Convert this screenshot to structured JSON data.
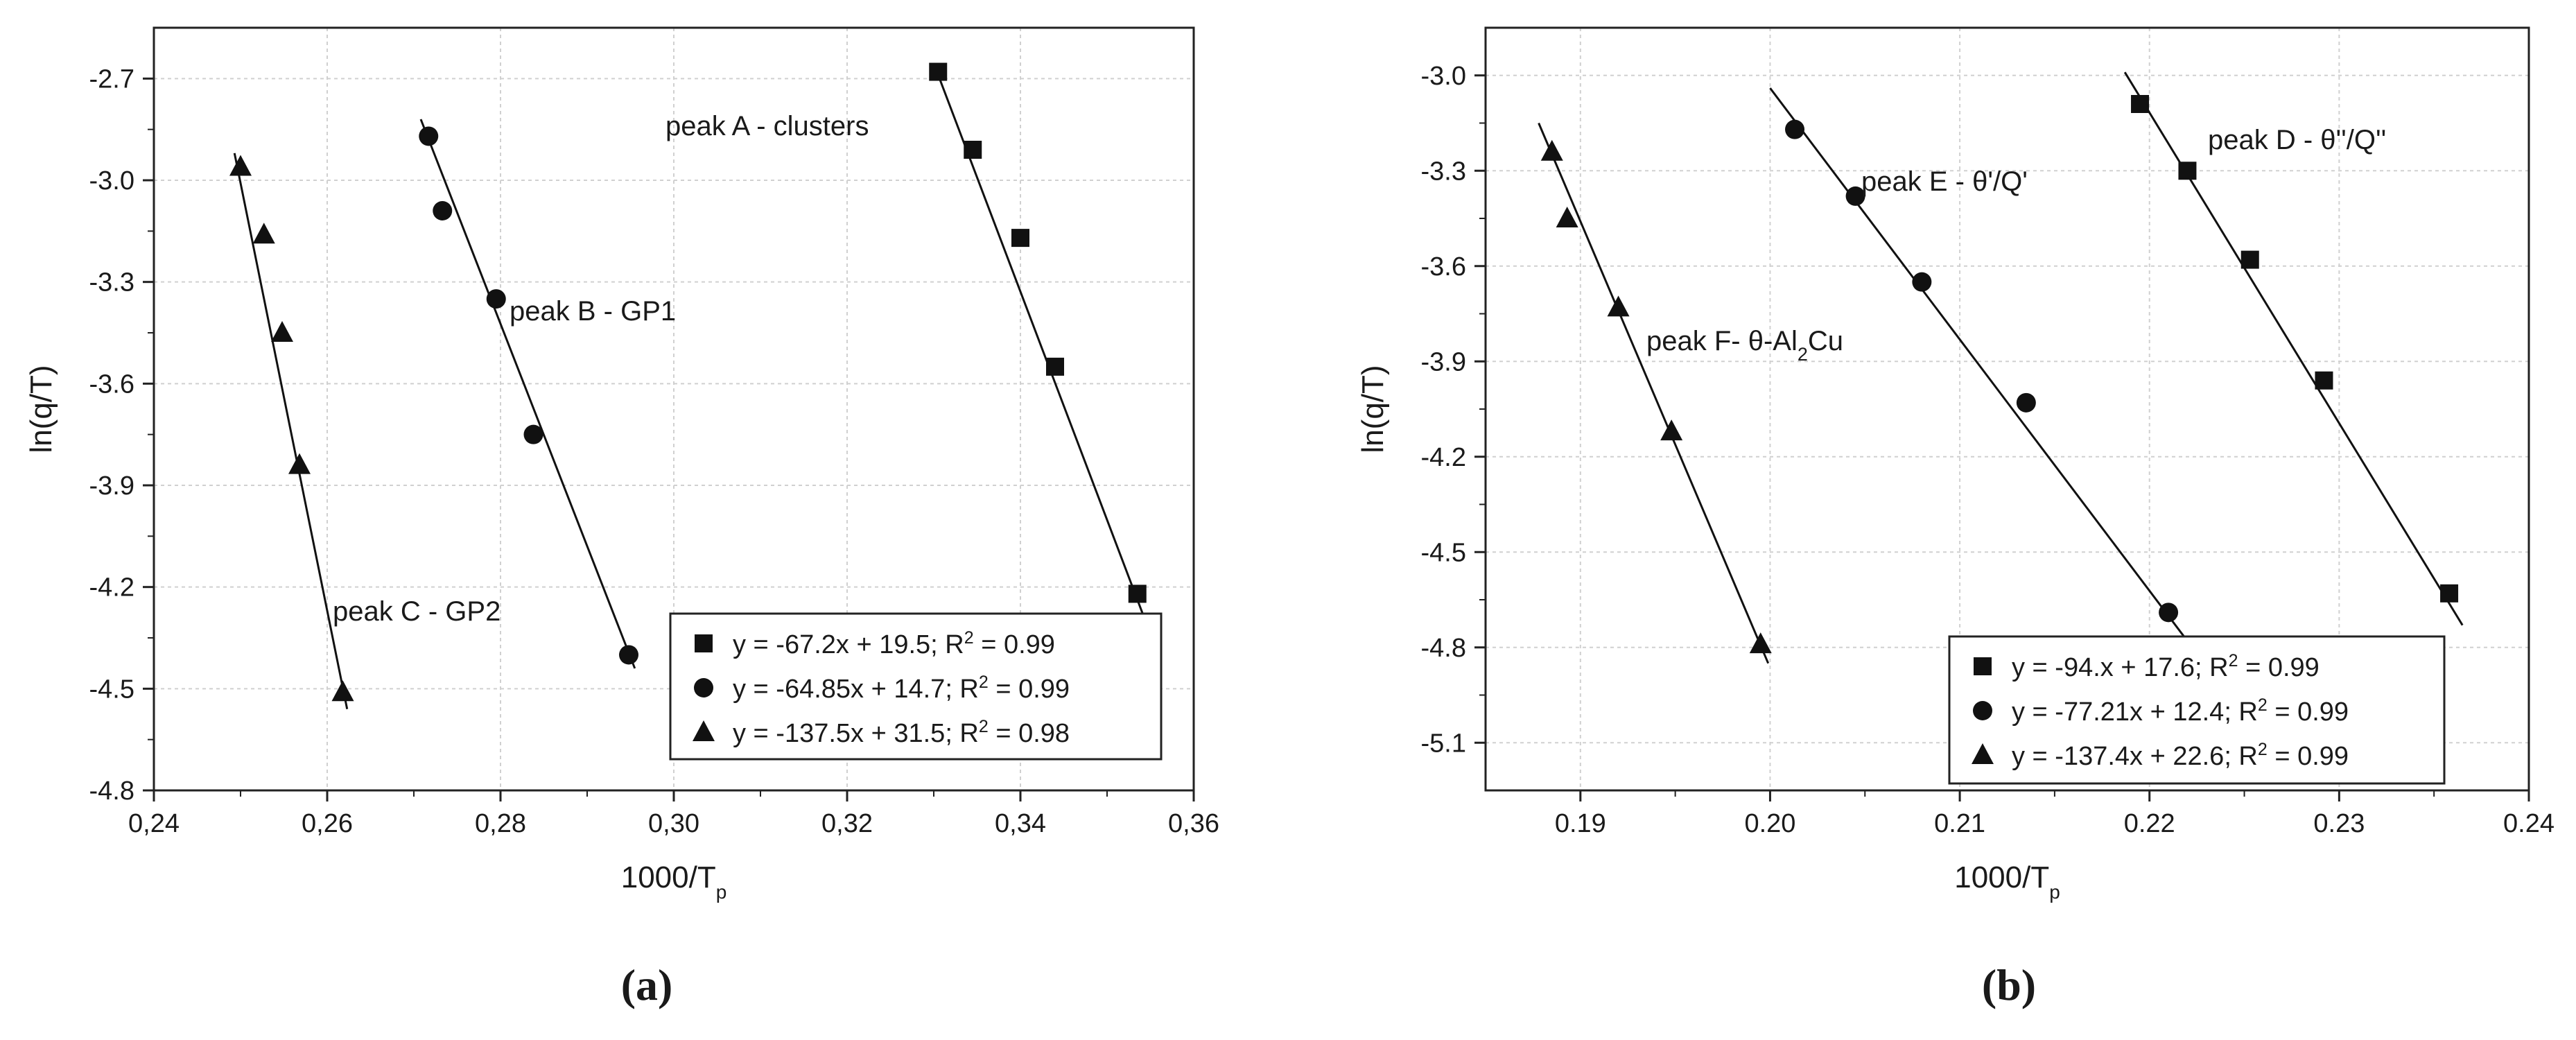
{
  "chart_data": [
    {
      "type": "scatter",
      "panel_label": "(a)",
      "xlabel": "1000/T",
      "xlabel_sub": "p",
      "ylabel": "ln(q/T)",
      "xlim": [
        0.24,
        0.36
      ],
      "ylim": [
        -4.8,
        -2.55
      ],
      "x_ticks": [
        0.24,
        0.26,
        0.28,
        0.3,
        0.32,
        0.34,
        0.36
      ],
      "x_tick_labels": [
        "0,24",
        "0,26",
        "0,28",
        "0,30",
        "0,32",
        "0,34",
        "0,36"
      ],
      "y_ticks": [
        -2.7,
        -3.0,
        -3.3,
        -3.6,
        -3.9,
        -4.2,
        -4.5,
        -4.8
      ],
      "y_tick_labels": [
        "-2.7",
        "-3.0",
        "-3.3",
        "-3.6",
        "-3.9",
        "-4.2",
        "-4.5",
        "-4.8"
      ],
      "grid": true,
      "legend_position": "bottom-right",
      "series": [
        {
          "marker": "square",
          "label": "peak A - clusters",
          "legend": {
            "pre": "y = -67.2x + 19.5; R",
            "sup": "2",
            "post": " = 0.99"
          },
          "points": [
            [
              0.3305,
              -2.68
            ],
            [
              0.3345,
              -2.91
            ],
            [
              0.34,
              -3.17
            ],
            [
              0.344,
              -3.55
            ],
            [
              0.3535,
              -4.22
            ]
          ],
          "fit_line": [
            [
              0.33,
              -2.655
            ],
            [
              0.3545,
              -4.305
            ]
          ]
        },
        {
          "marker": "circle",
          "label": "peak B - GP1",
          "legend": {
            "pre": "y = -64.85x + 14.7; R",
            "sup": "2",
            "post": " = 0.99"
          },
          "points": [
            [
              0.2717,
              -2.87
            ],
            [
              0.2733,
              -3.09
            ],
            [
              0.2795,
              -3.35
            ],
            [
              0.2838,
              -3.75
            ],
            [
              0.2948,
              -4.4
            ]
          ],
          "fit_line": [
            [
              0.2708,
              -2.82
            ],
            [
              0.2955,
              -4.44
            ]
          ]
        },
        {
          "marker": "triangle",
          "label": "peak C - GP2",
          "legend": {
            "pre": "y = -137.5x + 31.5; R",
            "sup": "2",
            "post": " = 0.98"
          },
          "points": [
            [
              0.25,
              -2.96
            ],
            [
              0.2527,
              -3.16
            ],
            [
              0.2548,
              -3.45
            ],
            [
              0.2568,
              -3.84
            ],
            [
              0.2618,
              -4.51
            ]
          ],
          "fit_line": [
            [
              0.2493,
              -2.92
            ],
            [
              0.2623,
              -4.56
            ]
          ]
        }
      ]
    },
    {
      "type": "scatter",
      "panel_label": "(b)",
      "xlabel": "1000/T",
      "xlabel_sub": "p",
      "ylabel": "ln(q/T)",
      "xlim": [
        0.185,
        0.24
      ],
      "ylim": [
        -5.25,
        -2.85
      ],
      "x_ticks": [
        0.19,
        0.2,
        0.21,
        0.22,
        0.23,
        0.24
      ],
      "x_tick_labels": [
        "0.19",
        "0.20",
        "0.21",
        "0.22",
        "0.23",
        "0.24"
      ],
      "y_ticks": [
        -3.0,
        -3.3,
        -3.6,
        -3.9,
        -4.2,
        -4.5,
        -4.8,
        -5.1
      ],
      "y_tick_labels": [
        "-3.0",
        "-3.3",
        "-3.6",
        "-3.9",
        "-4.2",
        "-4.5",
        "-4.8",
        "-5.1"
      ],
      "grid": true,
      "legend_position": "bottom-right",
      "series": [
        {
          "marker": "square",
          "label": "peak D - θ''/Q''",
          "legend": {
            "pre": "y = -94.x + 17.6; R",
            "sup": "2",
            "post": " = 0.99"
          },
          "points": [
            [
              0.2195,
              -3.09
            ],
            [
              0.222,
              -3.3
            ],
            [
              0.2253,
              -3.58
            ],
            [
              0.2292,
              -3.96
            ],
            [
              0.2358,
              -4.63
            ]
          ],
          "fit_line": [
            [
              0.2187,
              -2.99
            ],
            [
              0.2365,
              -4.73
            ]
          ]
        },
        {
          "marker": "circle",
          "label": "peak E - θ'/Q'",
          "legend": {
            "pre": "y = -77.21x + 12.4; R",
            "sup": "2",
            "post": " = 0.99"
          },
          "points": [
            [
              0.2013,
              -3.17
            ],
            [
              0.2045,
              -3.38
            ],
            [
              0.208,
              -3.65
            ],
            [
              0.2135,
              -4.03
            ],
            [
              0.221,
              -4.69
            ]
          ],
          "fit_line": [
            [
              0.2,
              -3.04
            ],
            [
              0.222,
              -4.78
            ]
          ]
        },
        {
          "marker": "triangle",
          "label": "peak F- θ-Al",
          "label_sub": "2",
          "label_post": "Cu",
          "legend": {
            "pre": "y = -137.4x + 22.6; R",
            "sup": "2",
            "post": " = 0.99"
          },
          "points": [
            [
              0.1885,
              -3.24
            ],
            [
              0.1893,
              -3.45
            ],
            [
              0.192,
              -3.73
            ],
            [
              0.1948,
              -4.12
            ],
            [
              0.1995,
              -4.79
            ]
          ],
          "fit_line": [
            [
              0.1878,
              -3.15
            ],
            [
              0.1999,
              -4.85
            ]
          ]
        }
      ]
    }
  ]
}
